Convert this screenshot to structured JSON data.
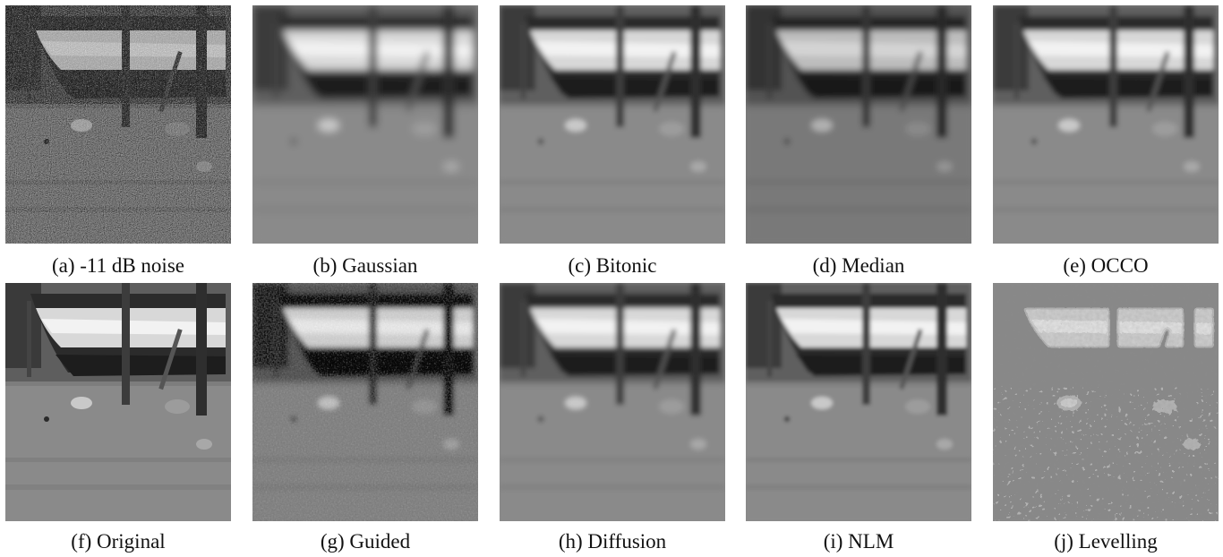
{
  "figure": {
    "panels": [
      {
        "id": "a",
        "caption": "(a) -11 dB noise",
        "style": "noisy"
      },
      {
        "id": "b",
        "caption": "(b) Gaussian",
        "style": "blur"
      },
      {
        "id": "c",
        "caption": "(c) Bitonic",
        "style": "blur_sharp"
      },
      {
        "id": "d",
        "caption": "(d) Median",
        "style": "blur_dark"
      },
      {
        "id": "e",
        "caption": "(e) OCCO",
        "style": "blur_sharp"
      },
      {
        "id": "f",
        "caption": "(f) Original",
        "style": "original"
      },
      {
        "id": "g",
        "caption": "(g) Guided",
        "style": "blur_noisy"
      },
      {
        "id": "h",
        "caption": "(h) Diffusion",
        "style": "blur_sharp"
      },
      {
        "id": "i",
        "caption": "(i) NLM",
        "style": "smooth"
      },
      {
        "id": "j",
        "caption": "(j) Levelling",
        "style": "posterized"
      }
    ]
  }
}
